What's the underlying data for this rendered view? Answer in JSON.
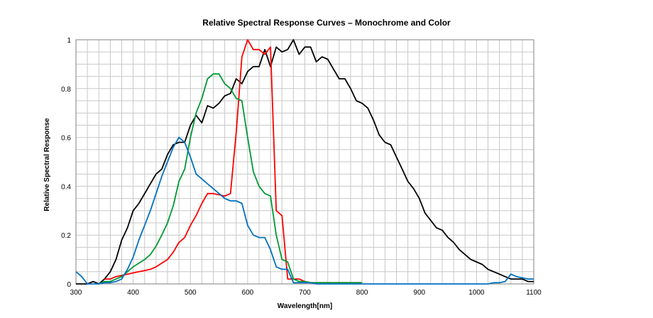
{
  "chart_data": {
    "type": "line",
    "title": "Relative Spectral Response Curves – Monochrome and Color",
    "xlabel": "Wavelength[nm]",
    "ylabel": "Relative Spectral Response",
    "xlim": [
      300,
      1100
    ],
    "ylim": [
      0,
      1
    ],
    "xticks": [
      300,
      400,
      500,
      600,
      700,
      800,
      900,
      1000,
      1100
    ],
    "yticks": [
      0,
      0.2,
      0.4,
      0.6,
      0.8,
      1
    ],
    "ytick_labels": [
      "0",
      "0.2",
      "0.4",
      "0.6",
      "0.8",
      "1"
    ],
    "grid": true,
    "minor_grid_step_x": 20,
    "minor_grid_step_y": 0.05,
    "series": [
      {
        "color": "#000000",
        "x": [
          300,
          310,
          320,
          330,
          340,
          350,
          360,
          370,
          380,
          390,
          400,
          410,
          420,
          430,
          440,
          450,
          460,
          470,
          480,
          490,
          500,
          510,
          520,
          530,
          540,
          550,
          560,
          570,
          580,
          590,
          600,
          610,
          620,
          630,
          640,
          650,
          660,
          670,
          680,
          690,
          700,
          710,
          720,
          730,
          740,
          750,
          760,
          770,
          780,
          790,
          800,
          810,
          820,
          830,
          840,
          850,
          860,
          870,
          880,
          890,
          900,
          910,
          920,
          930,
          940,
          950,
          960,
          970,
          980,
          990,
          1000,
          1010,
          1020,
          1030,
          1040,
          1050,
          1060,
          1070,
          1080,
          1090,
          1100
        ],
        "values": [
          0.0,
          0.0,
          0.0,
          0.01,
          0.0,
          0.02,
          0.05,
          0.1,
          0.18,
          0.23,
          0.3,
          0.33,
          0.37,
          0.41,
          0.45,
          0.47,
          0.53,
          0.57,
          0.58,
          0.58,
          0.65,
          0.69,
          0.66,
          0.73,
          0.72,
          0.74,
          0.77,
          0.78,
          0.84,
          0.82,
          0.87,
          0.89,
          0.89,
          0.96,
          0.89,
          0.97,
          0.95,
          0.96,
          1.0,
          0.94,
          0.97,
          0.97,
          0.91,
          0.93,
          0.92,
          0.88,
          0.84,
          0.84,
          0.8,
          0.75,
          0.74,
          0.72,
          0.67,
          0.61,
          0.58,
          0.57,
          0.52,
          0.47,
          0.42,
          0.39,
          0.35,
          0.29,
          0.26,
          0.23,
          0.22,
          0.19,
          0.17,
          0.14,
          0.12,
          0.1,
          0.09,
          0.08,
          0.06,
          0.05,
          0.04,
          0.03,
          0.02,
          0.02,
          0.02,
          0.01,
          0.01
        ]
      },
      {
        "color": "#ff0000",
        "x": [
          350,
          360,
          370,
          380,
          390,
          400,
          410,
          420,
          430,
          440,
          450,
          460,
          470,
          480,
          490,
          500,
          510,
          520,
          530,
          540,
          550,
          560,
          570,
          580,
          590,
          600,
          610,
          620,
          630,
          640,
          650,
          660,
          670,
          680,
          690,
          700,
          710,
          720,
          730,
          740,
          750,
          760,
          770,
          780,
          790,
          800
        ],
        "values": [
          0.02,
          0.02,
          0.03,
          0.035,
          0.04,
          0.045,
          0.05,
          0.055,
          0.06,
          0.07,
          0.085,
          0.1,
          0.13,
          0.17,
          0.19,
          0.24,
          0.28,
          0.33,
          0.37,
          0.37,
          0.365,
          0.36,
          0.37,
          0.62,
          0.93,
          1.0,
          0.96,
          0.96,
          0.94,
          0.97,
          0.3,
          0.28,
          0.02,
          0.02,
          0.02,
          0.01,
          0.005,
          0.005,
          0.005,
          0.005,
          0.005,
          0.005,
          0.005,
          0.005,
          0.005,
          0.005
        ]
      },
      {
        "color": "#009933",
        "x": [
          340,
          350,
          360,
          370,
          380,
          390,
          400,
          410,
          420,
          430,
          440,
          450,
          460,
          470,
          480,
          490,
          500,
          510,
          520,
          530,
          540,
          550,
          560,
          570,
          580,
          590,
          600,
          610,
          620,
          630,
          640,
          650,
          660,
          670,
          680,
          690,
          700,
          710,
          720,
          730,
          740,
          750,
          760,
          770,
          780,
          790,
          800
        ],
        "values": [
          0.0,
          0.01,
          0.01,
          0.02,
          0.03,
          0.05,
          0.07,
          0.085,
          0.1,
          0.12,
          0.155,
          0.2,
          0.25,
          0.32,
          0.42,
          0.47,
          0.6,
          0.7,
          0.76,
          0.84,
          0.86,
          0.86,
          0.82,
          0.8,
          0.76,
          0.75,
          0.6,
          0.46,
          0.4,
          0.37,
          0.36,
          0.2,
          0.1,
          0.09,
          0.02,
          0.01,
          0.01,
          0.005,
          0.005,
          0.005,
          0.005,
          0.005,
          0.005,
          0.005,
          0.005,
          0.005,
          0.005
        ]
      },
      {
        "color": "#0070c0",
        "x": [
          300,
          310,
          320,
          330,
          340,
          350,
          360,
          370,
          380,
          390,
          400,
          410,
          420,
          430,
          440,
          450,
          460,
          470,
          480,
          490,
          500,
          510,
          520,
          530,
          540,
          550,
          560,
          570,
          580,
          590,
          600,
          610,
          620,
          630,
          640,
          650,
          660,
          670,
          680,
          690,
          700,
          710,
          720,
          730,
          740,
          750,
          760,
          770,
          780,
          790,
          800,
          850,
          900,
          950,
          1000,
          1020,
          1030,
          1040,
          1050,
          1060,
          1070,
          1080,
          1090,
          1100
        ],
        "values": [
          0.05,
          0.03,
          0.0,
          0.0,
          0.0,
          0.005,
          0.005,
          0.01,
          0.02,
          0.06,
          0.11,
          0.18,
          0.24,
          0.3,
          0.37,
          0.44,
          0.5,
          0.56,
          0.6,
          0.58,
          0.52,
          0.45,
          0.43,
          0.41,
          0.39,
          0.37,
          0.35,
          0.34,
          0.34,
          0.33,
          0.24,
          0.2,
          0.19,
          0.19,
          0.14,
          0.07,
          0.06,
          0.06,
          0.005,
          0.005,
          0.005,
          0.005,
          0.0,
          0.0,
          0.0,
          0.0,
          0.0,
          0.0,
          0.0,
          0.0,
          0.0,
          0.0,
          0.0,
          0.0,
          0.0,
          0.0,
          0.005,
          0.005,
          0.01,
          0.04,
          0.03,
          0.025,
          0.02,
          0.02
        ]
      }
    ]
  }
}
